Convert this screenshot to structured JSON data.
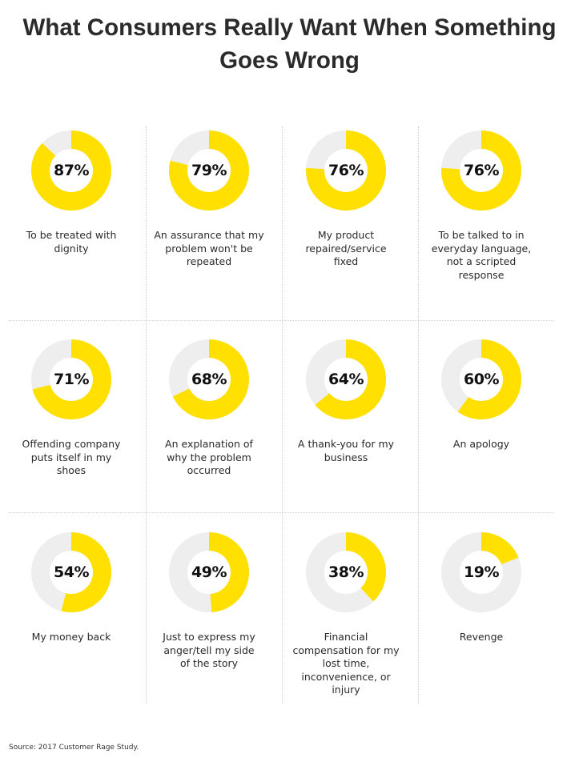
{
  "title_line1": "What Consumers Really Want When Something",
  "title_line2": "Goes Wrong",
  "source": "Source: 2017 Customer Rage Study.",
  "colors": {
    "filled": "#FFE000",
    "empty": "#EEEEEE"
  },
  "chart_data": {
    "type": "pie",
    "subtype": "donut-grid",
    "title": "What Consumers Really Want When Something Goes Wrong",
    "unit": "%",
    "items": [
      {
        "label": "To be treated with dignity",
        "value": 87,
        "display": "87%"
      },
      {
        "label": "An assurance that my problem won't be repeated",
        "value": 79,
        "display": "79%"
      },
      {
        "label": "My product repaired/service fixed",
        "value": 76,
        "display": "76%"
      },
      {
        "label": "To be talked to in everyday language, not a scripted response",
        "value": 76,
        "display": "76%"
      },
      {
        "label": "Offending company puts itself in my shoes",
        "value": 71,
        "display": "71%"
      },
      {
        "label": "An explanation of why the problem occurred",
        "value": 68,
        "display": "68%"
      },
      {
        "label": "A thank-you for my business",
        "value": 64,
        "display": "64%"
      },
      {
        "label": "An apology",
        "value": 60,
        "display": "60%"
      },
      {
        "label": "My money back",
        "value": 54,
        "display": "54%"
      },
      {
        "label": "Just to express my anger/tell my side of the story",
        "value": 49,
        "display": "49%"
      },
      {
        "label": "Financial compensation for my lost time, inconvenience, or injury",
        "value": 38,
        "display": "38%"
      },
      {
        "label": "Revenge",
        "value": 19,
        "display": "19%"
      }
    ]
  }
}
